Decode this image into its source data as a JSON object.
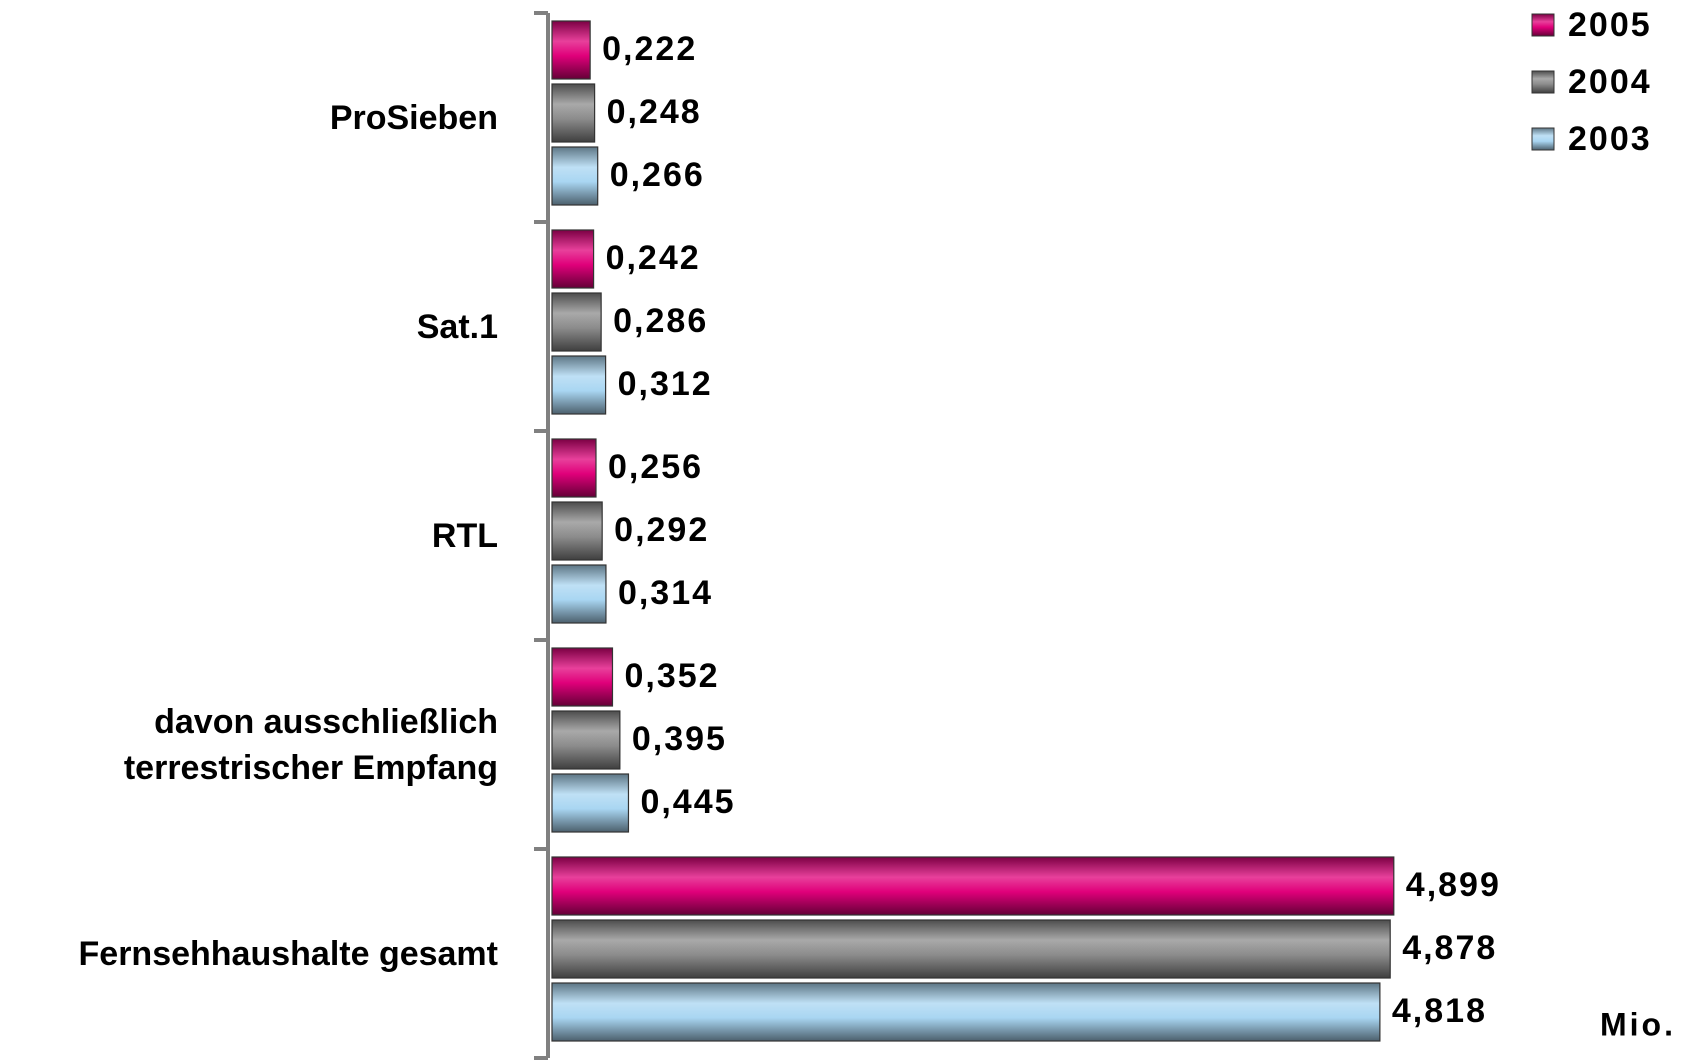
{
  "chart_data": {
    "type": "bar",
    "orientation": "horizontal",
    "categories": [
      "ProSieben",
      "Sat.1",
      "RTL",
      "davon ausschließlich\nterrestrischer Empfang",
      "Fernsehhaushalte gesamt"
    ],
    "series": [
      {
        "name": "2005",
        "color": "#e0007a",
        "values": [
          0.222,
          0.242,
          0.256,
          0.352,
          4.899
        ],
        "value_labels": [
          "0,222",
          "0,242",
          "0,256",
          "0,352",
          "4,899"
        ]
      },
      {
        "name": "2004",
        "color": "#8c8c8c",
        "values": [
          0.248,
          0.286,
          0.292,
          0.395,
          4.878
        ],
        "value_labels": [
          "0,248",
          "0,286",
          "0,292",
          "0,395",
          "4,878"
        ]
      },
      {
        "name": "2003",
        "color": "#a9d6f2",
        "values": [
          0.266,
          0.312,
          0.314,
          0.445,
          4.818
        ],
        "value_labels": [
          "0,266",
          "0,312",
          "0,314",
          "0,445",
          "4,818"
        ]
      }
    ],
    "xlabel": "Mio.",
    "xlim": [
      0,
      6
    ],
    "legend": "upper right"
  }
}
